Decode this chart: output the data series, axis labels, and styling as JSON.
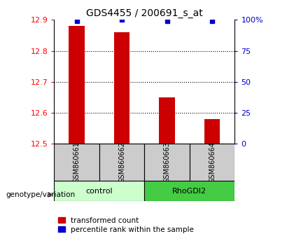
{
  "title": "GDS4455 / 200691_s_at",
  "samples": [
    "GSM860661",
    "GSM860662",
    "GSM860663",
    "GSM860664"
  ],
  "transformed_counts": [
    12.88,
    12.86,
    12.65,
    12.58
  ],
  "percentile_ranks": [
    99,
    100,
    99,
    99
  ],
  "ylim_left": [
    12.5,
    12.9
  ],
  "ylim_right": [
    0,
    100
  ],
  "yticks_left": [
    12.5,
    12.6,
    12.7,
    12.8,
    12.9
  ],
  "yticks_right": [
    0,
    25,
    50,
    75,
    100
  ],
  "ytick_labels_right": [
    "0",
    "25",
    "50",
    "75",
    "100%"
  ],
  "bar_color": "#cc0000",
  "dot_color": "#0000cc",
  "control_bg": "#ccffcc",
  "rhodgi2_bg": "#44cc44",
  "sample_label_bg": "#cccccc",
  "legend_red_label": "transformed count",
  "legend_blue_label": "percentile rank within the sample",
  "genotype_label": "genotype/variation"
}
